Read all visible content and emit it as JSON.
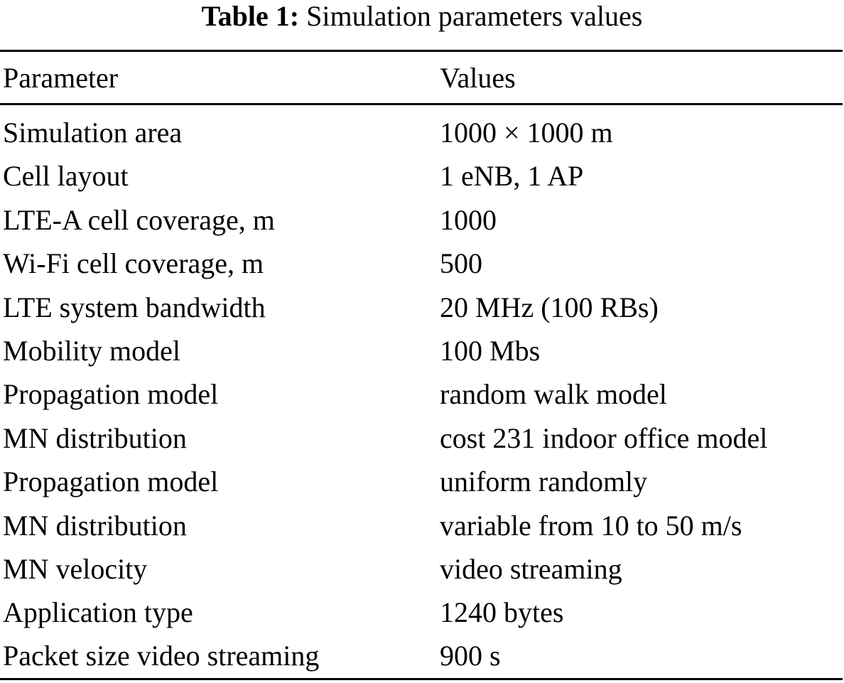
{
  "caption": {
    "label": "Table 1:",
    "title": "Simulation parameters values"
  },
  "table": {
    "headers": [
      "Parameter",
      "Values"
    ],
    "rows": [
      [
        "Simulation area",
        "1000 × 1000 m"
      ],
      [
        "Cell layout",
        "1 eNB, 1 AP"
      ],
      [
        "LTE-A cell coverage, m",
        "1000"
      ],
      [
        "Wi-Fi cell coverage, m",
        "500"
      ],
      [
        "LTE system bandwidth",
        "20 MHz (100 RBs)"
      ],
      [
        "Mobility model",
        "100 Mbs"
      ],
      [
        "Propagation model",
        "random walk model"
      ],
      [
        "MN distribution",
        "cost 231 indoor office model"
      ],
      [
        "Propagation model",
        "uniform randomly"
      ],
      [
        "MN distribution",
        "variable from 10 to 50 m/s"
      ],
      [
        "MN velocity",
        "video streaming"
      ],
      [
        "Application type",
        "1240 bytes"
      ],
      [
        "Packet size video streaming",
        "900 s"
      ]
    ]
  }
}
